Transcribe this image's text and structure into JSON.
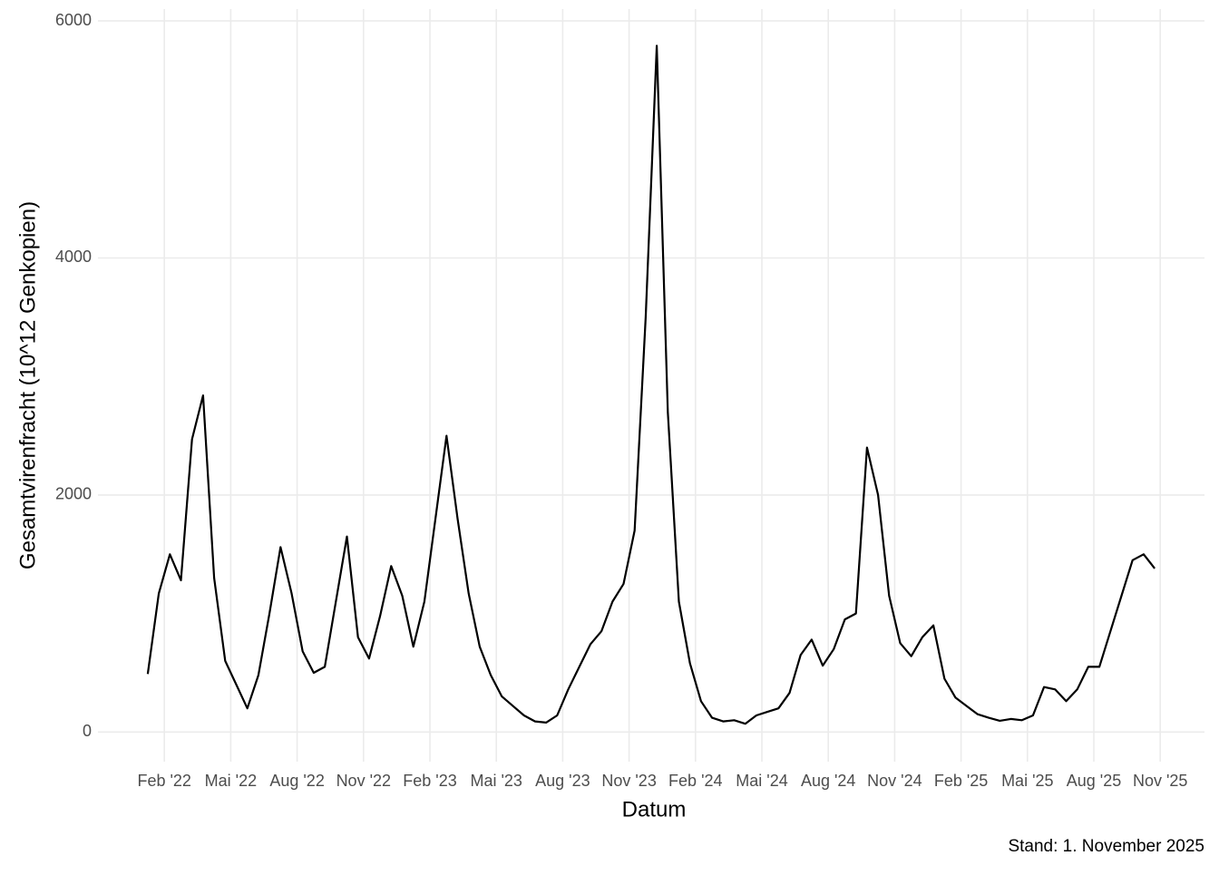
{
  "chart_data": {
    "type": "line",
    "y_label": "Gesamtvirenfracht (10^12 Genkopien)",
    "x_label": "Datum",
    "caption": "Stand: 1. November 2025",
    "x": [
      "2022-01",
      "2022-01",
      "2022-02",
      "2022-02",
      "2022-03",
      "2022-03",
      "2022-04",
      "2022-04",
      "2022-05",
      "2022-05",
      "2022-06",
      "2022-06",
      "2022-07",
      "2022-07",
      "2022-08",
      "2022-08",
      "2022-09",
      "2022-09",
      "2022-10",
      "2022-10",
      "2022-11",
      "2022-11",
      "2022-12",
      "2022-12",
      "2023-01",
      "2023-01",
      "2023-02",
      "2023-02",
      "2023-03",
      "2023-03",
      "2023-04",
      "2023-04",
      "2023-05",
      "2023-05",
      "2023-06",
      "2023-06",
      "2023-07",
      "2023-07",
      "2023-08",
      "2023-08",
      "2023-09",
      "2023-09",
      "2023-10",
      "2023-10",
      "2023-11",
      "2023-11",
      "2023-12",
      "2023-12",
      "2024-01",
      "2024-01",
      "2024-02",
      "2024-02",
      "2024-03",
      "2024-03",
      "2024-04",
      "2024-04",
      "2024-05",
      "2024-05",
      "2024-06",
      "2024-06",
      "2024-07",
      "2024-07",
      "2024-08",
      "2024-08",
      "2024-09",
      "2024-09",
      "2024-10",
      "2024-10",
      "2024-11",
      "2024-11",
      "2024-12",
      "2024-12",
      "2025-01",
      "2025-01",
      "2025-02",
      "2025-02",
      "2025-03",
      "2025-03",
      "2025-04",
      "2025-04",
      "2025-05",
      "2025-05",
      "2025-06",
      "2025-06",
      "2025-07",
      "2025-07",
      "2025-08",
      "2025-08",
      "2025-09",
      "2025-09",
      "2025-10",
      "2025-10"
    ],
    "series": [
      {
        "color": "#000000",
        "values": [
          490,
          1170,
          1500,
          1280,
          2470,
          2840,
          1300,
          600,
          400,
          200,
          480,
          1000,
          1560,
          1170,
          680,
          500,
          550,
          1100,
          1650,
          800,
          620,
          980,
          1400,
          1150,
          720,
          1100,
          1800,
          2500,
          1800,
          1170,
          720,
          480,
          300,
          220,
          140,
          90,
          80,
          140,
          360,
          550,
          740,
          850,
          1100,
          1250,
          1700,
          3500,
          5790,
          2700,
          1100,
          580,
          260,
          120,
          90,
          100,
          70,
          140,
          170,
          200,
          330,
          650,
          780,
          560,
          700,
          950,
          1000,
          2400,
          2000,
          1150,
          750,
          640,
          800,
          900,
          450,
          290,
          220,
          150,
          120,
          95,
          110,
          100,
          140,
          380,
          360,
          260,
          360,
          550,
          550,
          850,
          1150,
          1450,
          1500,
          1380
        ]
      }
    ],
    "xlim": [
      "2021-11",
      "2026-01"
    ],
    "xticks": [
      {
        "value": "2022-02",
        "label": "Feb '22"
      },
      {
        "value": "2022-05",
        "label": "Mai '22"
      },
      {
        "value": "2022-08",
        "label": "Aug '22"
      },
      {
        "value": "2022-11",
        "label": "Nov '22"
      },
      {
        "value": "2023-02",
        "label": "Feb '23"
      },
      {
        "value": "2023-05",
        "label": "Mai '23"
      },
      {
        "value": "2023-08",
        "label": "Aug '23"
      },
      {
        "value": "2023-11",
        "label": "Nov '23"
      },
      {
        "value": "2024-02",
        "label": "Feb '24"
      },
      {
        "value": "2024-05",
        "label": "Mai '24"
      },
      {
        "value": "2024-08",
        "label": "Aug '24"
      },
      {
        "value": "2024-11",
        "label": "Nov '24"
      },
      {
        "value": "2025-02",
        "label": "Feb '25"
      },
      {
        "value": "2025-05",
        "label": "Mai '25"
      },
      {
        "value": "2025-08",
        "label": "Aug '25"
      },
      {
        "value": "2025-11",
        "label": "Nov '25"
      }
    ],
    "ylim": [
      -250,
      6100
    ],
    "yticks": [
      0,
      2000,
      4000,
      6000
    ],
    "grid": true
  }
}
